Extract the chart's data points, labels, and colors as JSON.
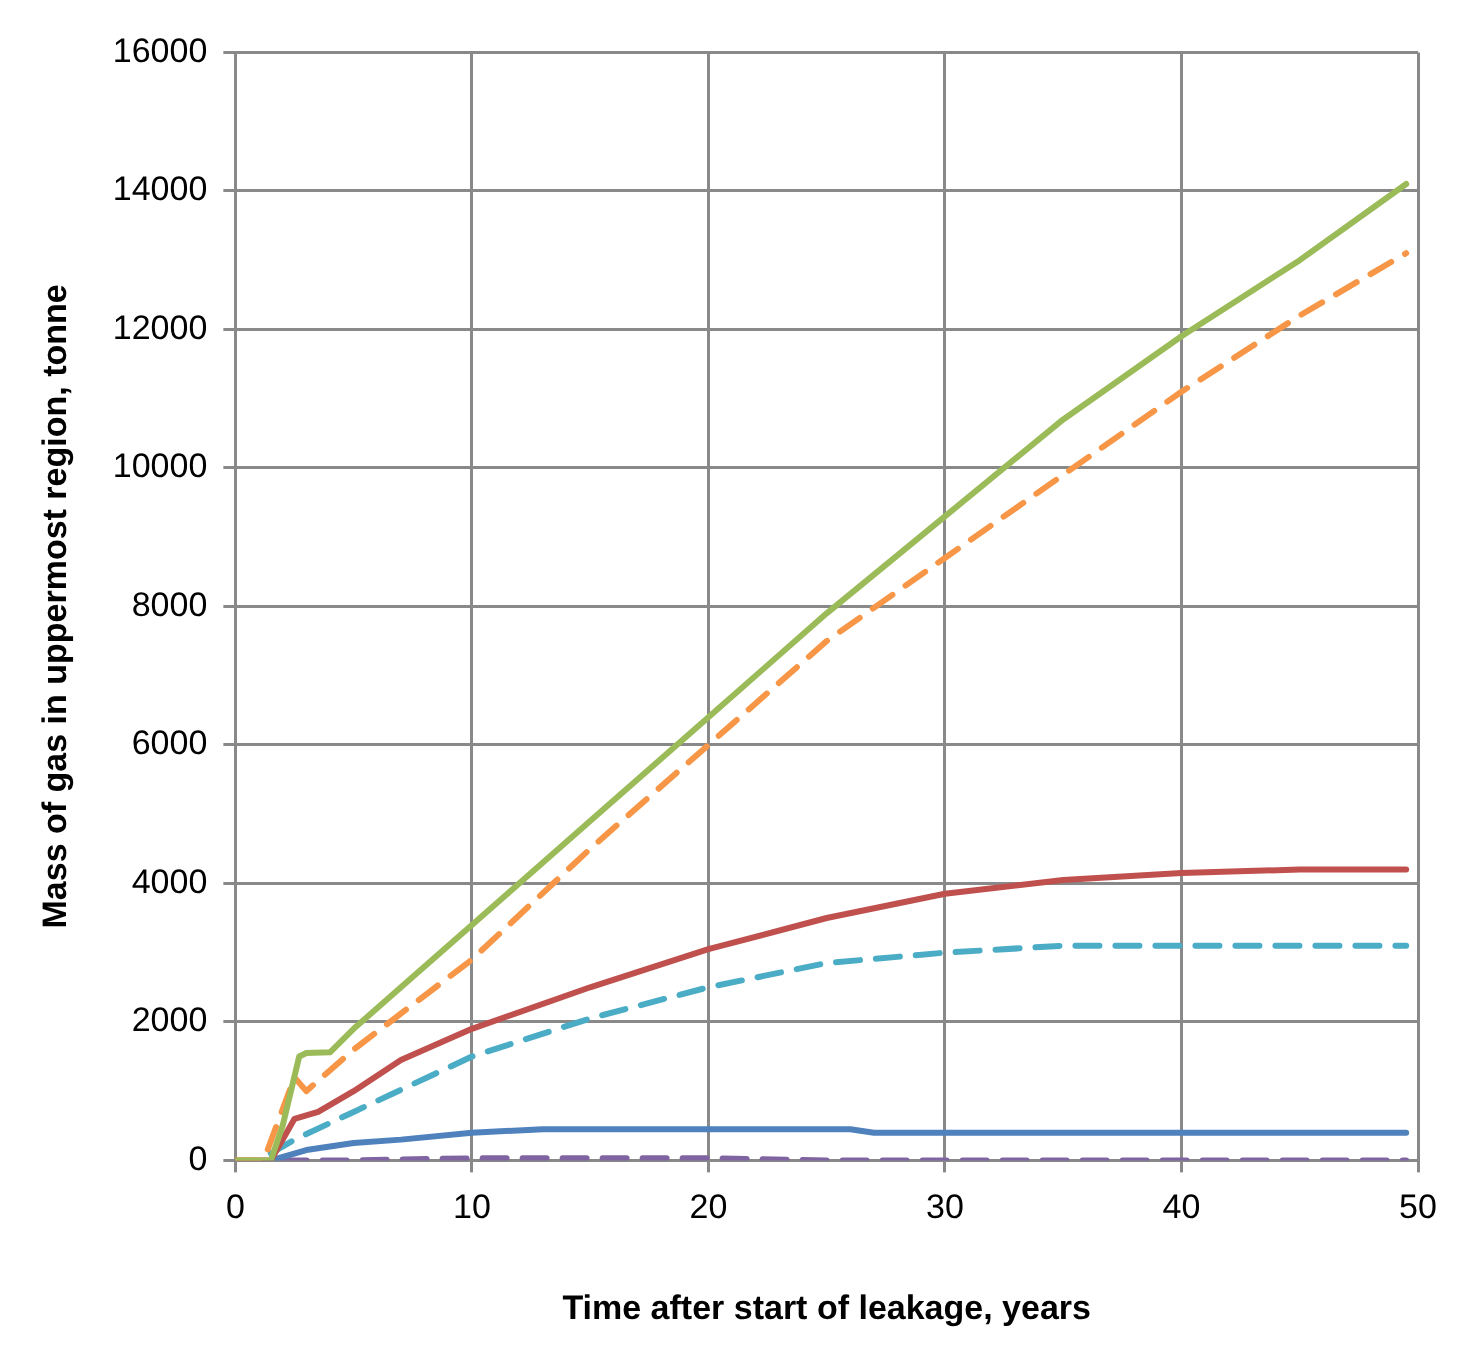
{
  "chart_data": {
    "type": "line",
    "xlabel": "Time after start of leakage, years",
    "ylabel": "Mass of gas in uppermost region, tonne",
    "xlim": [
      0,
      50
    ],
    "xticks": [
      0,
      10,
      20,
      30,
      40,
      50
    ],
    "ylim": [
      0,
      16000
    ],
    "yticks": [
      0,
      2000,
      4000,
      6000,
      8000,
      10000,
      12000,
      14000,
      16000
    ],
    "grid": true,
    "legend": false,
    "marker": "none",
    "series": [
      {
        "color": "#9bbb59",
        "line_style": "solid",
        "x": [
          0,
          1.5,
          2,
          2.7,
          3,
          4,
          5,
          7,
          10,
          15,
          20,
          25,
          30,
          35,
          40,
          45,
          49.5
        ],
        "values": [
          0,
          0,
          500,
          1500,
          1550,
          1560,
          1900,
          2500,
          3400,
          4900,
          6400,
          7900,
          9300,
          10700,
          11900,
          13000,
          14100
        ]
      },
      {
        "color": "#f79646",
        "line_style": "dashed",
        "x": [
          0,
          1.2,
          2.5,
          3,
          5,
          10,
          15,
          20,
          25,
          30,
          35,
          40,
          45,
          49.5
        ],
        "values": [
          0,
          0,
          1200,
          1000,
          1600,
          2900,
          4500,
          6000,
          7500,
          8700,
          9900,
          11100,
          12200,
          13100
        ]
      },
      {
        "color": "#c0504d",
        "line_style": "solid",
        "x": [
          0,
          1.5,
          2.5,
          3.5,
          5,
          7,
          10,
          15,
          20,
          25,
          30,
          35,
          40,
          45,
          49.5
        ],
        "values": [
          0,
          0,
          600,
          700,
          1000,
          1450,
          1900,
          2500,
          3050,
          3500,
          3850,
          4050,
          4150,
          4200,
          4200
        ]
      },
      {
        "color": "#4bacc6",
        "line_style": "dashed",
        "x": [
          1.5,
          2.5,
          5,
          10,
          15,
          20,
          25,
          30,
          35,
          40,
          45,
          49.5
        ],
        "values": [
          100,
          300,
          700,
          1500,
          2050,
          2500,
          2850,
          3000,
          3100,
          3100,
          3100,
          3100
        ]
      },
      {
        "color": "#4f81bd",
        "line_style": "solid",
        "x": [
          1.5,
          3,
          5,
          7,
          10,
          13,
          26,
          27,
          49.5
        ],
        "values": [
          0,
          150,
          250,
          300,
          400,
          450,
          450,
          400,
          400
        ]
      },
      {
        "color": "#8064a2",
        "line_style": "dashed",
        "x": [
          2,
          5,
          10,
          20,
          25,
          49.5
        ],
        "values": [
          0,
          0,
          30,
          30,
          0,
          0
        ]
      }
    ]
  }
}
